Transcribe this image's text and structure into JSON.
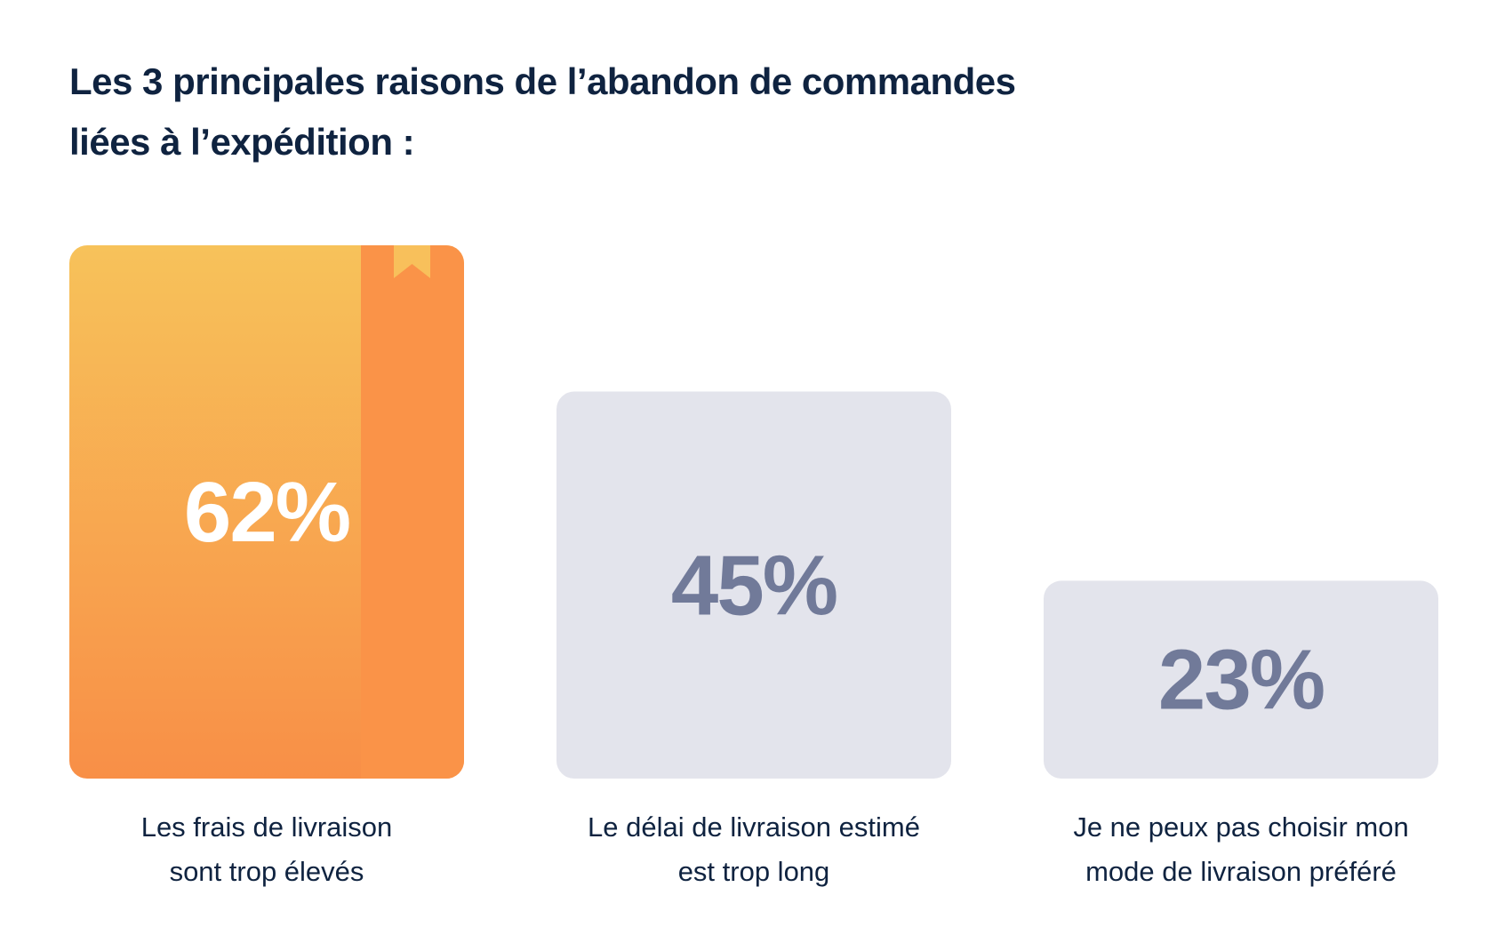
{
  "title_lines": [
    "Les 3 principales raisons de l’abandon de commandes",
    "liées à l’expédition :"
  ],
  "colors": {
    "title": "#0f2340",
    "highlight_top": "#f7c25a",
    "highlight_bottom": "#f88f47",
    "bookmark_spine": "#fa9348",
    "bookmark_ribbon": "#f8c05b",
    "bar_gray": "#e3e4ec",
    "value_gray_text": "#717a99",
    "value_white_text": "#ffffff",
    "label_text": "#0f2340"
  },
  "chart_data": {
    "type": "bar",
    "title": "Les 3 principales raisons de l’abandon de commandes liées à l’expédition :",
    "xlabel": "",
    "ylabel": "",
    "ylim": [
      0,
      62
    ],
    "grid": false,
    "categories": [
      [
        "Les frais de livraison",
        "sont trop élevés"
      ],
      [
        "Le délai de livraison estimé",
        "est trop long"
      ],
      [
        "Je ne peux pas choisir mon",
        "mode de livraison préféré"
      ]
    ],
    "values": [
      62,
      45,
      23
    ],
    "value_labels": [
      "62%",
      "45%",
      "23%"
    ],
    "highlight_index": 0
  }
}
